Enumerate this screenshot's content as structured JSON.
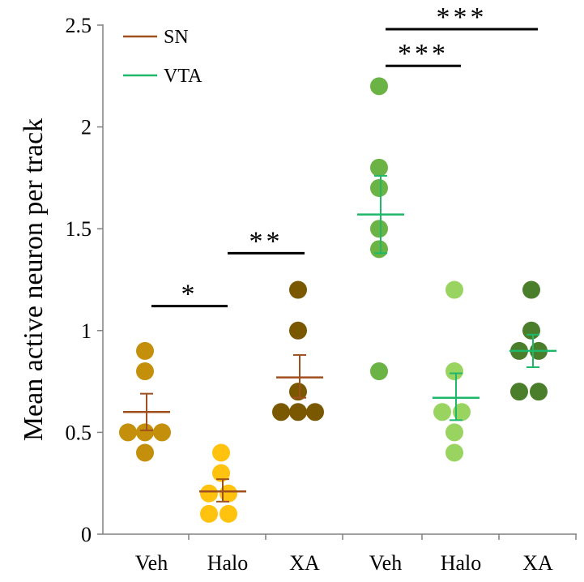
{
  "chart_data": {
    "type": "scatter",
    "ylabel": "Mean active neuron per track",
    "xlabel": "",
    "ylim": [
      0,
      2.5
    ],
    "yticks": [
      0,
      0.5,
      1,
      1.5,
      2,
      2.5
    ],
    "ytick_labels": [
      "0",
      "0.5",
      "1",
      "1.5",
      "2",
      "2.5"
    ],
    "legend": {
      "position": "top-left",
      "entries": [
        {
          "label": "SN",
          "color": "#a0501e"
        },
        {
          "label": "VTA",
          "color": "#1fb86a"
        }
      ]
    },
    "groups": [
      {
        "label": "Veh",
        "series": "SN",
        "mean": 0.6,
        "sem_low": 0.51,
        "sem_high": 0.69,
        "mean_color": "#a0501e",
        "points": [
          {
            "y": 0.9,
            "color": "#c4900c"
          },
          {
            "y": 0.8,
            "color": "#c4900c"
          },
          {
            "y": 0.5,
            "color": "#c4900c"
          },
          {
            "y": 0.5,
            "color": "#c4900c"
          },
          {
            "y": 0.5,
            "color": "#c4900c"
          },
          {
            "y": 0.4,
            "color": "#c4900c"
          }
        ]
      },
      {
        "label": "Halo",
        "series": "SN",
        "mean": 0.21,
        "sem_low": 0.16,
        "sem_high": 0.27,
        "mean_color": "#a0501e",
        "points": [
          {
            "y": 0.4,
            "color": "#ffc20e"
          },
          {
            "y": 0.3,
            "color": "#ffc20e"
          },
          {
            "y": 0.2,
            "color": "#ffc20e"
          },
          {
            "y": 0.2,
            "color": "#ffc20e"
          },
          {
            "y": 0.1,
            "color": "#ffc20e"
          },
          {
            "y": 0.1,
            "color": "#ffc20e"
          }
        ]
      },
      {
        "label": "XA",
        "series": "SN",
        "mean": 0.77,
        "sem_low": 0.67,
        "sem_high": 0.88,
        "mean_color": "#a0501e",
        "points": [
          {
            "y": 1.2,
            "color": "#7a5800"
          },
          {
            "y": 1.0,
            "color": "#7a5800"
          },
          {
            "y": 0.7,
            "color": "#7a5800"
          },
          {
            "y": 0.6,
            "color": "#7a5800"
          },
          {
            "y": 0.6,
            "color": "#7a5800"
          },
          {
            "y": 0.6,
            "color": "#7a5800"
          }
        ]
      },
      {
        "label": "Veh",
        "series": "VTA",
        "mean": 1.57,
        "sem_low": 1.38,
        "sem_high": 1.76,
        "mean_color": "#1fb86a",
        "points": [
          {
            "y": 2.2,
            "color": "#6ab344"
          },
          {
            "y": 1.8,
            "color": "#6ab344"
          },
          {
            "y": 1.7,
            "color": "#6ab344"
          },
          {
            "y": 1.5,
            "color": "#6ab344"
          },
          {
            "y": 1.4,
            "color": "#6ab344"
          },
          {
            "y": 0.8,
            "color": "#6ab344"
          }
        ]
      },
      {
        "label": "Halo",
        "series": "VTA",
        "mean": 0.67,
        "sem_low": 0.56,
        "sem_high": 0.79,
        "mean_color": "#1fb86a",
        "points": [
          {
            "y": 1.2,
            "color": "#9ad460"
          },
          {
            "y": 0.8,
            "color": "#9ad460"
          },
          {
            "y": 0.6,
            "color": "#9ad460"
          },
          {
            "y": 0.6,
            "color": "#9ad460"
          },
          {
            "y": 0.5,
            "color": "#9ad460"
          },
          {
            "y": 0.4,
            "color": "#9ad460"
          }
        ]
      },
      {
        "label": "XA",
        "series": "VTA",
        "mean": 0.9,
        "sem_low": 0.82,
        "sem_high": 0.98,
        "mean_color": "#1fb86a",
        "points": [
          {
            "y": 1.2,
            "color": "#4a7e2a"
          },
          {
            "y": 1.0,
            "color": "#4a7e2a"
          },
          {
            "y": 0.9,
            "color": "#4a7e2a"
          },
          {
            "y": 0.9,
            "color": "#4a7e2a"
          },
          {
            "y": 0.7,
            "color": "#4a7e2a"
          },
          {
            "y": 0.7,
            "color": "#4a7e2a"
          }
        ]
      }
    ],
    "significance": [
      {
        "from": 0,
        "to": 1,
        "y": 1.12,
        "label": "*"
      },
      {
        "from": 1,
        "to": 2,
        "y": 1.38,
        "label": "**"
      },
      {
        "from": 3,
        "to": 4,
        "y": 2.3,
        "label": "***"
      },
      {
        "from": 3,
        "to": 5,
        "y": 2.48,
        "label": "***"
      }
    ]
  }
}
